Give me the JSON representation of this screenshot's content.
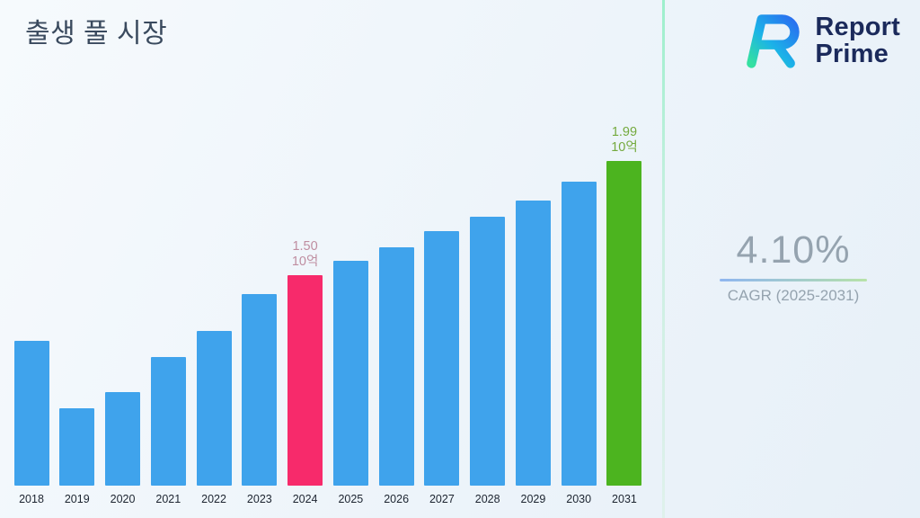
{
  "header": {
    "title": "출생 풀 시장",
    "brand": {
      "line1": "Report",
      "line2": "Prime"
    }
  },
  "stats": {
    "cagr_value": "4.10%",
    "cagr_label": "CAGR (2025-2031)"
  },
  "chart_data": {
    "type": "bar",
    "title": "출생 풀 시장",
    "categories": [
      "2018",
      "2019",
      "2020",
      "2021",
      "2022",
      "2023",
      "2024",
      "2025",
      "2026",
      "2027",
      "2028",
      "2029",
      "2030",
      "2031"
    ],
    "values": [
      1.22,
      0.93,
      1.0,
      1.15,
      1.26,
      1.42,
      1.5,
      1.56,
      1.62,
      1.69,
      1.75,
      1.82,
      1.9,
      1.99
    ],
    "unit": "10억",
    "xlabel": "",
    "ylabel": "",
    "ylim": [
      0.6,
      2.05
    ],
    "grid": false,
    "legend": false,
    "bar_color_default": "#3fa3ec",
    "highlighted_bars": [
      {
        "category": "2024",
        "value_label": "1.50",
        "unit_label": "10억",
        "bar_color": "#f72a6b",
        "label_color": "#bf8da0"
      },
      {
        "category": "2031",
        "value_label": "1.99",
        "unit_label": "10억",
        "bar_color": "#4cb41f",
        "label_color": "#74aa3e"
      }
    ],
    "colors": {
      "bar_blue": "#3fa3ec",
      "accent_pink": "#f72a6b",
      "accent_green": "#4cb41f"
    }
  }
}
